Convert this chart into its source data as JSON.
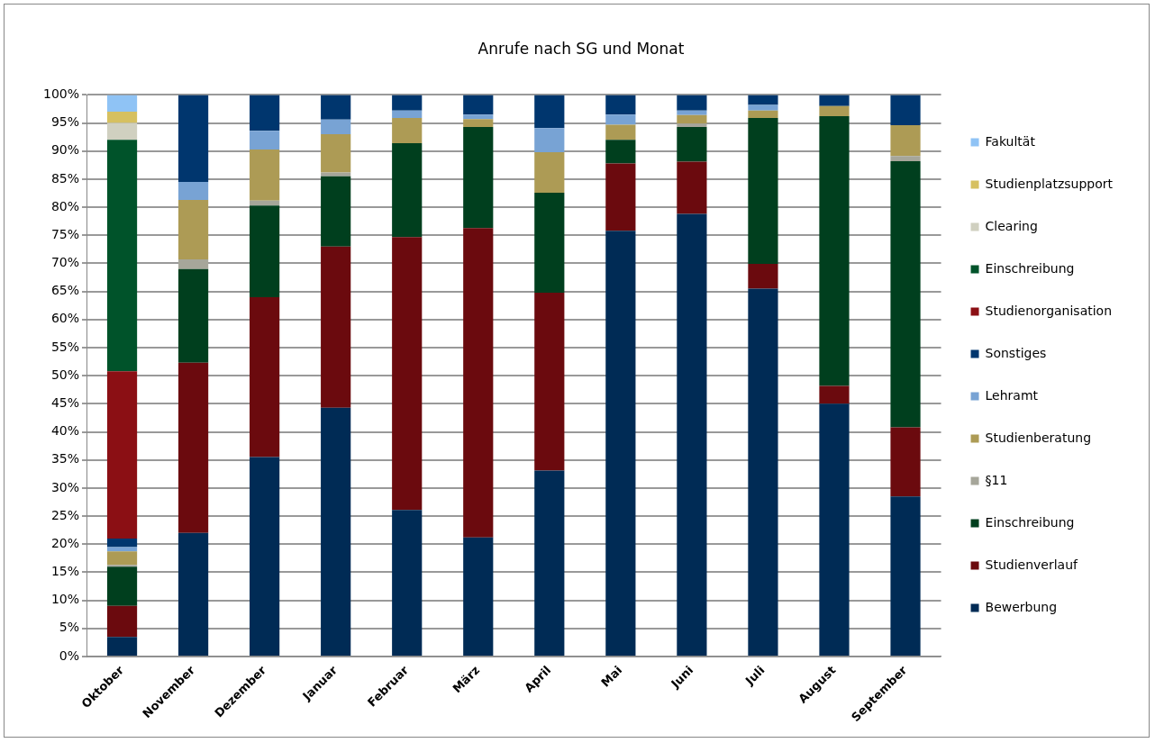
{
  "chart_data": {
    "type": "bar",
    "title": "Anrufe nach SG und Monat",
    "stacked": true,
    "grid": "y",
    "legend": "right",
    "categories": [
      "Oktober",
      "November",
      "Dezember",
      "Januar",
      "Februar",
      "März",
      "April",
      "Mai",
      "Juni",
      "Juli",
      "August",
      "September"
    ],
    "ylim": [
      0,
      100
    ],
    "yticks": [
      {
        "value": 0,
        "label": "0%"
      },
      {
        "value": 5,
        "label": "5%"
      },
      {
        "value": 10,
        "label": "10%"
      },
      {
        "value": 15,
        "label": "15%"
      },
      {
        "value": 20,
        "label": "20%"
      },
      {
        "value": 25,
        "label": "25%"
      },
      {
        "value": 30,
        "label": "30%"
      },
      {
        "value": 35,
        "label": "35%"
      },
      {
        "value": 40,
        "label": "40%"
      },
      {
        "value": 45,
        "label": "45%"
      },
      {
        "value": 50,
        "label": "50%"
      },
      {
        "value": 55,
        "label": "55%"
      },
      {
        "value": 60,
        "label": "60%"
      },
      {
        "value": 65,
        "label": "65%"
      },
      {
        "value": 70,
        "label": "70%"
      },
      {
        "value": 75,
        "label": "75%"
      },
      {
        "value": 80,
        "label": "80%"
      },
      {
        "value": 85,
        "label": "85%"
      },
      {
        "value": 90,
        "label": "90%"
      },
      {
        "value": 95,
        "label": "95%"
      },
      {
        "value": 100,
        "label": "100%"
      }
    ],
    "series": [
      {
        "name": "Bewerbung",
        "color": "#002b55",
        "values": [
          3.5,
          22,
          35.5,
          44.3,
          26.1,
          21.2,
          33.1,
          75.8,
          78.8,
          65.5,
          45.0,
          28.5
        ]
      },
      {
        "name": "Studienverlauf",
        "color": "#6b0a0e",
        "values": [
          5.5,
          30.3,
          28.5,
          28.7,
          48.6,
          55.1,
          31.7,
          12.0,
          9.3,
          4.4,
          3.2,
          12.3
        ]
      },
      {
        "name": "Einschreibung",
        "color": "#003f1e",
        "values": [
          7,
          16.7,
          16.3,
          12.5,
          16.7,
          18.0,
          17.8,
          4.2,
          6.2,
          26.0,
          48.0,
          47.4
        ]
      },
      {
        "name": "§11",
        "color": "#a6a69a",
        "values": [
          0.3,
          1.7,
          0.9,
          0.7,
          null,
          null,
          null,
          null,
          0.6,
          null,
          null,
          0.9
        ]
      },
      {
        "name": "Studienberatung",
        "color": "#ad9b55",
        "values": [
          2.4,
          10.6,
          9.1,
          6.8,
          4.5,
          1.4,
          7.2,
          2.7,
          1.5,
          1.3,
          1.8,
          5.5
        ]
      },
      {
        "name": "Lehramt",
        "color": "#78a3d4",
        "values": [
          0.8,
          3.2,
          3.3,
          2.6,
          1.3,
          0.8,
          4.3,
          1.8,
          0.8,
          1.0,
          null,
          null
        ]
      },
      {
        "name": "Sonstiges",
        "color": "#00366e",
        "values": [
          1.5,
          15.5,
          6.4,
          4.4,
          2.8,
          3.5,
          5.9,
          3.5,
          2.8,
          1.8,
          2.0,
          5.4
        ]
      },
      {
        "name": "Studienorganisation",
        "color": "#8b0f14",
        "values": [
          29.8,
          null,
          null,
          null,
          null,
          null,
          null,
          null,
          null,
          null,
          null,
          null
        ]
      },
      {
        "name": "Einschreibung",
        "color": "#00532a",
        "values": [
          41.2,
          null,
          null,
          null,
          null,
          null,
          null,
          null,
          null,
          null,
          null,
          null
        ]
      },
      {
        "name": "Clearing",
        "color": "#d0d0c0",
        "values": [
          3,
          null,
          null,
          null,
          null,
          null,
          null,
          null,
          null,
          null,
          null,
          null
        ]
      },
      {
        "name": "Studienplatzsupport",
        "color": "#d6c060",
        "values": [
          2,
          null,
          null,
          null,
          null,
          null,
          null,
          null,
          null,
          null,
          null,
          null
        ]
      },
      {
        "name": "Fakultät",
        "color": "#8fc3f5",
        "values": [
          3,
          null,
          null,
          null,
          null,
          null,
          null,
          null,
          null,
          null,
          null,
          null
        ]
      }
    ]
  }
}
